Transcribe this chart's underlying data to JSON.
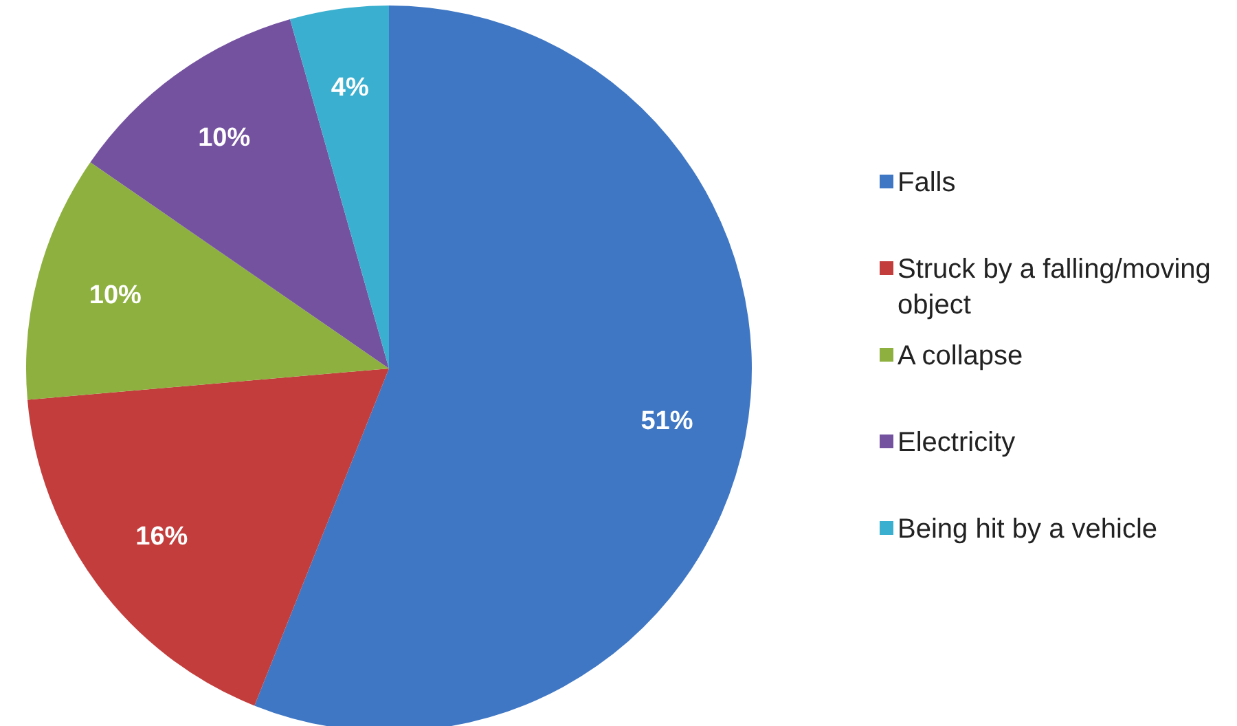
{
  "chart_data": {
    "type": "pie",
    "categories": [
      "Falls",
      "Struck by a falling/moving object",
      "A collapse",
      "Electricity",
      "Being hit by a vehicle"
    ],
    "values": [
      51,
      16,
      10,
      10,
      4
    ],
    "colors": [
      "#3f77c4",
      "#c23d3b",
      "#8db03f",
      "#7552a0",
      "#3aafcf"
    ],
    "value_labels": [
      "51%",
      "16%",
      "10%",
      "10%",
      "4%"
    ],
    "legend": "right"
  }
}
